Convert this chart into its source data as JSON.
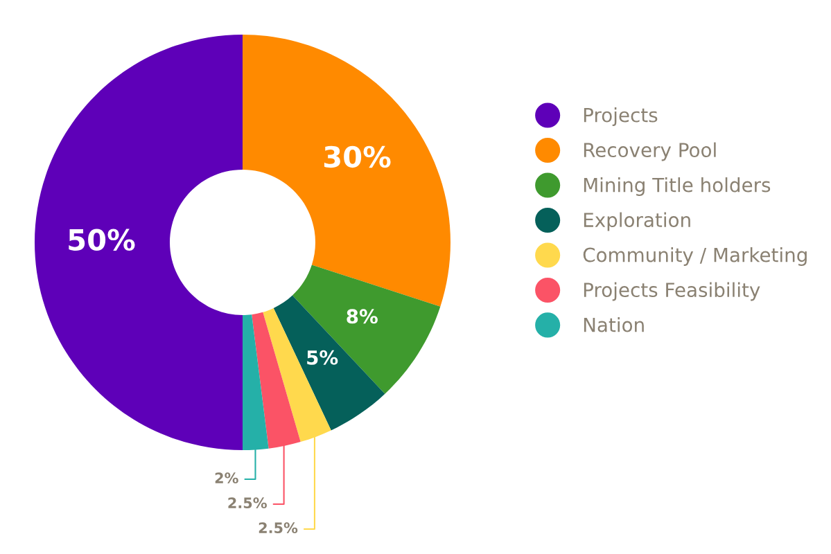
{
  "chart_data": {
    "type": "donut",
    "categories": [
      "Projects",
      "Recovery Pool",
      "Mining Title holders",
      "Exploration",
      "Community / Marketing",
      "Projects Feasibility",
      "Nation"
    ],
    "values": [
      50,
      30,
      8,
      5,
      2.5,
      2.5,
      2
    ],
    "colors": [
      "#5e00b8",
      "#ff8a00",
      "#3f9a2e",
      "#05605a",
      "#ffd94d",
      "#fb5366",
      "#25b0a8"
    ],
    "value_labels": [
      "50%",
      "30%",
      "8%",
      "5%",
      "2.5%",
      "2.5%",
      "2%"
    ],
    "legend": "right"
  }
}
